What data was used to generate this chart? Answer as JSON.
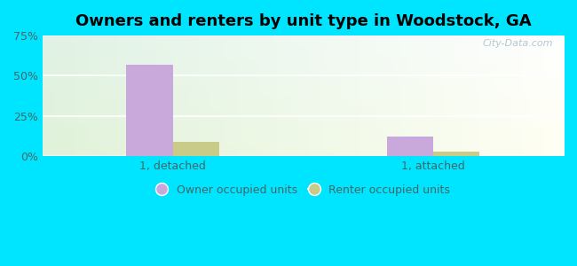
{
  "title": "Owners and renters by unit type in Woodstock, GA",
  "categories": [
    "1, detached",
    "1, attached"
  ],
  "owner_values": [
    57,
    12
  ],
  "renter_values": [
    9,
    3
  ],
  "owner_color": "#c9a8dc",
  "renter_color": "#c8cc88",
  "ylim": [
    0,
    75
  ],
  "yticks": [
    0,
    25,
    50,
    75
  ],
  "yticklabels": [
    "0%",
    "25%",
    "50%",
    "75%"
  ],
  "background_outer": "#00e5ff",
  "watermark": "City-Data.com",
  "legend_labels": [
    "Owner occupied units",
    "Renter occupied units"
  ],
  "bar_width": 0.32,
  "group_positions": [
    0.9,
    2.7
  ]
}
